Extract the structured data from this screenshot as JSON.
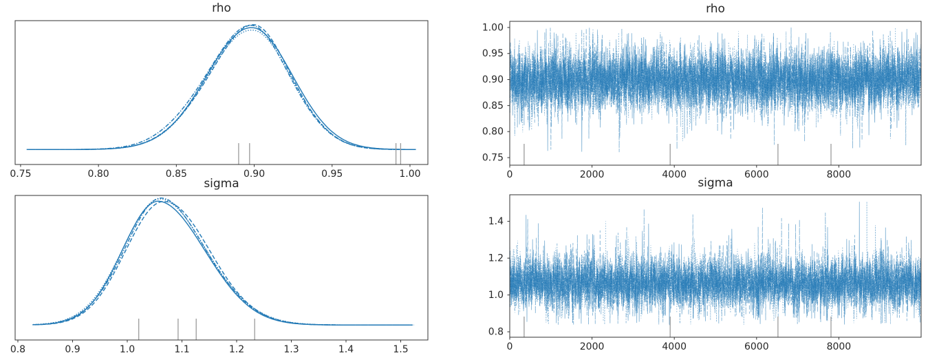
{
  "figure_titles": {
    "rho_density": "rho",
    "rho_trace": "rho",
    "sigma_density": "sigma",
    "sigma_trace": "sigma"
  },
  "colors": {
    "chain_line": "#1f77b4",
    "trace_dense_core": "#4d90c4",
    "divergence_rug": "#9a9a9a",
    "axes_spine": "#333333",
    "tick_text": "#262626",
    "background": "#ffffff"
  },
  "chart_data": [
    {
      "type": "kde",
      "title": "rho",
      "panel": "posterior-density",
      "n_chains": 4,
      "chain_linestyles": [
        "solid",
        "dashed",
        "dashdot",
        "dotted"
      ],
      "xlim": [
        0.7465,
        1.0115
      ],
      "xticks": {
        "values": [
          0.75,
          0.8,
          0.85,
          0.9,
          0.95,
          1.0
        ],
        "labels": [
          "0.75",
          "0.80",
          "0.85",
          "0.90",
          "0.95",
          "1.00"
        ]
      },
      "distribution": {
        "peak": 0.899,
        "sd_left": 0.03,
        "sd_right": 0.026,
        "support": [
          0.755,
          1.003
        ]
      },
      "divergence_rug": [
        0.89,
        0.897,
        0.991,
        0.994
      ],
      "grid": false,
      "legend": false
    },
    {
      "type": "trace",
      "title": "rho",
      "panel": "trace-series",
      "n_chains": 4,
      "chain_linestyles": [
        "solid",
        "dashed",
        "dashdot",
        "dotted"
      ],
      "xlim": [
        0,
        10000
      ],
      "ylim": [
        0.7355,
        1.0118
      ],
      "xticks": {
        "values": [
          0,
          2000,
          4000,
          6000,
          8000
        ],
        "labels": [
          "0",
          "2000",
          "4000",
          "6000",
          "8000"
        ]
      },
      "yticks": {
        "values": [
          1.0,
          0.95,
          0.9,
          0.85,
          0.8,
          0.75
        ],
        "labels": [
          "1.00",
          "0.95",
          "0.90",
          "0.85",
          "0.80",
          "0.75"
        ]
      },
      "series_summary": {
        "mean": 0.899,
        "sd": 0.0285,
        "min": 0.757,
        "max": 1.0,
        "n_draws": 10000,
        "skew": "none"
      },
      "divergence_rug": [
        350,
        3900,
        6520,
        7810
      ],
      "grid": false,
      "legend": false
    },
    {
      "type": "kde",
      "title": "sigma",
      "panel": "posterior-density",
      "n_chains": 4,
      "chain_linestyles": [
        "solid",
        "dashed",
        "dashdot",
        "dotted"
      ],
      "xlim": [
        0.795,
        1.5497
      ],
      "xticks": {
        "values": [
          0.8,
          0.9,
          1.0,
          1.1,
          1.2,
          1.3,
          1.4,
          1.5
        ],
        "labels": [
          "0.8",
          "0.9",
          "1.0",
          "1.1",
          "1.2",
          "1.3",
          "1.4",
          "1.5"
        ]
      },
      "distribution": {
        "peak": 1.062,
        "sd_left": 0.068,
        "sd_right": 0.086,
        "support": [
          0.829,
          1.52
        ]
      },
      "divergence_rug": [
        1.021,
        1.093,
        1.126,
        1.233
      ],
      "grid": false,
      "legend": false
    },
    {
      "type": "trace",
      "title": "sigma",
      "panel": "trace-series",
      "n_chains": 4,
      "chain_linestyles": [
        "solid",
        "dashed",
        "dashdot",
        "dotted"
      ],
      "xlim": [
        0,
        10000
      ],
      "ylim": [
        0.7704,
        1.5444
      ],
      "xticks": {
        "values": [
          0,
          2000,
          4000,
          6000,
          8000
        ],
        "labels": [
          "0",
          "2000",
          "4000",
          "6000",
          "8000"
        ]
      },
      "yticks": {
        "values": [
          1.4,
          1.2,
          1.0,
          0.8
        ],
        "labels": [
          "1.4",
          "1.2",
          "1.0",
          "0.8"
        ]
      },
      "series_summary": {
        "mean": 1.062,
        "sd": 0.068,
        "min": 0.838,
        "max": 1.51,
        "n_draws": 10000,
        "skew": "right"
      },
      "divergence_rug": [
        350,
        3900,
        6520,
        7810
      ],
      "grid": false,
      "legend": false
    }
  ]
}
